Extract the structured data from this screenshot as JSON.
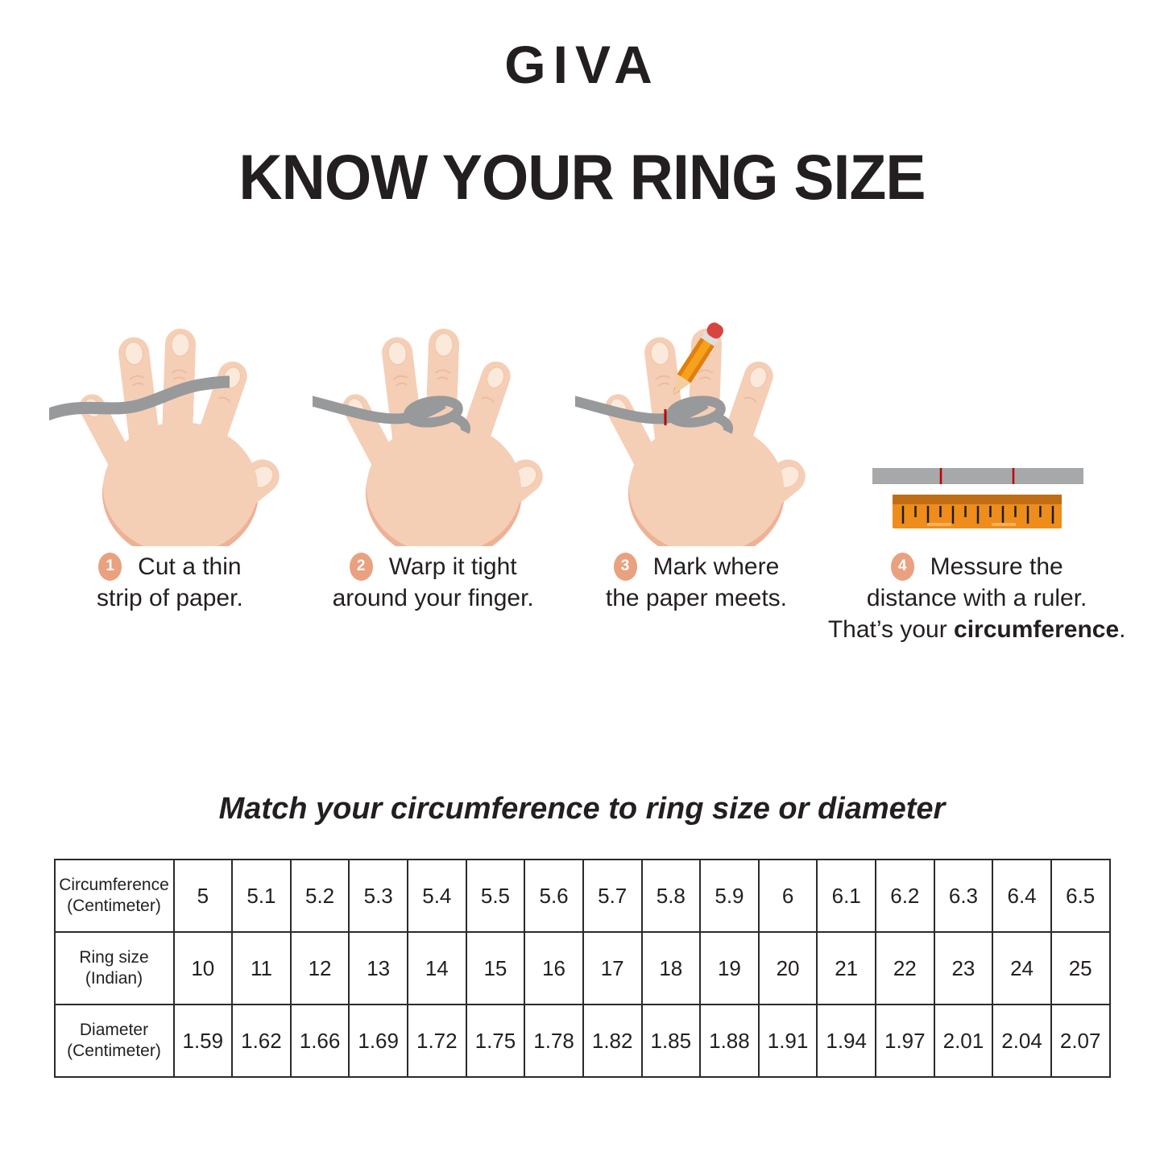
{
  "brand": "GIVA",
  "title": "KNOW YOUR RING SIZE",
  "subtitle": "Match your circumference to ring size or diameter",
  "steps": [
    {
      "number": "1",
      "line1": "Cut a thin",
      "line2": "strip of paper."
    },
    {
      "number": "2",
      "line1": "Warp it tight",
      "line2": "around your finger."
    },
    {
      "number": "3",
      "line1": "Mark where",
      "line2": "the paper meets."
    },
    {
      "number": "4",
      "line1": "Messure the",
      "line2": "distance with a ruler.",
      "line3_prefix": "That’s your ",
      "line3_bold": "circumference",
      "line3_suffix": "."
    }
  ],
  "illustrations": [
    "hand-with-paper-strip",
    "hand-strip-wrapped-around-finger",
    "hand-strip-marked-with-pencil",
    "ruler-measuring-paper-strip"
  ],
  "table": {
    "rows": [
      {
        "header_line1": "Circumference",
        "header_line2": "(Centimeter)",
        "values": [
          "5",
          "5.1",
          "5.2",
          "5.3",
          "5.4",
          "5.5",
          "5.6",
          "5.7",
          "5.8",
          "5.9",
          "6",
          "6.1",
          "6.2",
          "6.3",
          "6.4",
          "6.5"
        ]
      },
      {
        "header_line1": "Ring size",
        "header_line2": "(Indian)",
        "values": [
          "10",
          "11",
          "12",
          "13",
          "14",
          "15",
          "16",
          "17",
          "18",
          "19",
          "20",
          "21",
          "22",
          "23",
          "24",
          "25"
        ]
      },
      {
        "header_line1": "Diameter",
        "header_line2": "(Centimeter)",
        "values": [
          "1.59",
          "1.62",
          "1.66",
          "1.69",
          "1.72",
          "1.75",
          "1.78",
          "1.82",
          "1.85",
          "1.88",
          "1.91",
          "1.94",
          "1.97",
          "2.01",
          "2.04",
          "2.07"
        ]
      }
    ]
  },
  "colors": {
    "accent": "#E9A180",
    "strip": "#97999B",
    "ruler": "#EE8C1C",
    "ruler_dark": "#C06E15",
    "skin": "#F5CEB6",
    "skin_shadow": "#EDB296",
    "nail": "#FBEADC",
    "pencil_body": "#F6A21D",
    "pencil_eraser": "#D8453E",
    "mark_red": "#C00000",
    "text": "#231F20"
  }
}
